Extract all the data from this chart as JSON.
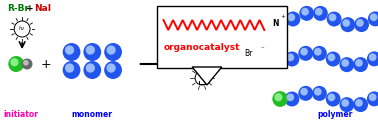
{
  "bg_color": "#ffffff",
  "rbr_color": "#007700",
  "plus_color": "#000000",
  "nai_color": "#cc0000",
  "initiator_label": "initiator",
  "monomer_label": "monomer",
  "polymer_label": "polymer",
  "organocatalyst_label": "organocatalyst",
  "label_color_pink": "#ff00aa",
  "label_color_blue": "#0000ff",
  "label_color_red": "#ff0000",
  "monomer_color": "#2255ee",
  "monomer_hi": "#99bbff",
  "green_color": "#22bb22",
  "green_hi": "#88ee88",
  "gray_color": "#666666",
  "gray_hi": "#bbbbbb",
  "chain_color": "#2255ee",
  "chain_hi": "#99bbff",
  "fig_w": 3.78,
  "fig_h": 1.27,
  "dpi": 100
}
